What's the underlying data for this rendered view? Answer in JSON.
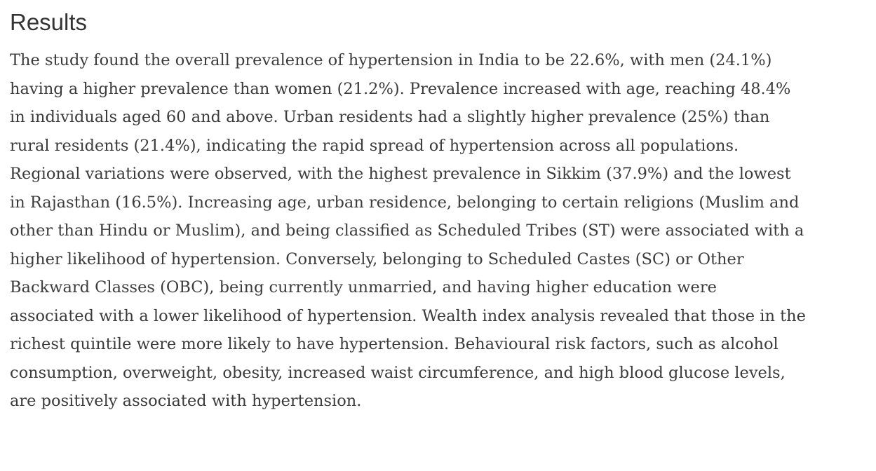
{
  "page": {
    "background_color": "#ffffff",
    "heading_color": "#333333",
    "body_text_color": "#3b3b3b"
  },
  "content": {
    "heading": "Results",
    "paragraph": "The study found the overall prevalence of hypertension in India to be 22.6%, with men (24.1%) having a higher prevalence than women (21.2%). Prevalence increased with age, reaching 48.4% in individuals aged 60 and above. Urban residents had a slightly higher prevalence (25%) than rural residents (21.4%), indicating the rapid spread of hypertension across all populations. Regional variations were observed, with the highest prevalence in Sikkim (37.9%) and the lowest in Rajasthan (16.5%). Increasing age, urban residence, belonging to certain religions (Muslim and other than Hindu or Muslim), and being classified as Scheduled Tribes (ST) were associated with a higher likelihood of hypertension. Conversely, belonging to Scheduled Castes (SC) or Other Backward Classes (OBC), being currently unmarried, and having higher education were associated with a lower likelihood of hypertension. Wealth index analysis revealed that those in the richest quintile were more likely to have hypertension. Behavioural risk factors, such as alcohol consumption, overweight, obesity, increased waist circumference, and high blood glucose levels, are positively associated with hypertension."
  }
}
